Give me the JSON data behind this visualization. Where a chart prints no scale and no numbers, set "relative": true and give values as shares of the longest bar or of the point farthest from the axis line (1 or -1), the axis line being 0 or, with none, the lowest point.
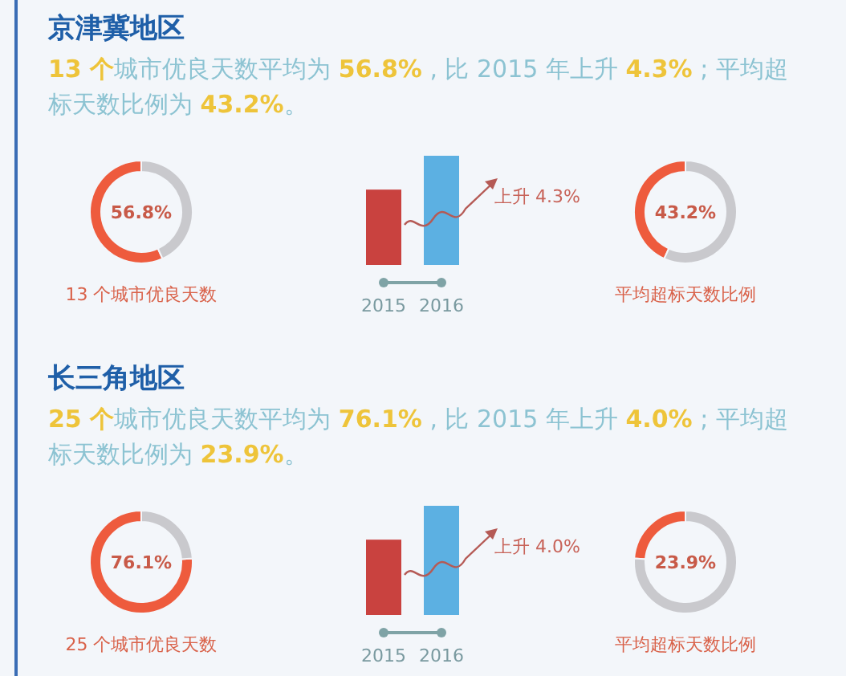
{
  "chart_data": [
    {
      "type": "other",
      "title": "京津冀地区",
      "subtitle": "**13 个**城市优良天数平均为 **56.8%** , 比 2015 年上升 **4.3%** ; 平均超标天数比例为 **43.2%**。"
    },
    {
      "type": "donut",
      "title": "13 个城市优良天数",
      "categories": [
        null,
        null
      ],
      "values": [
        56.8,
        43.2
      ],
      "colors": [
        "#ee5b3d",
        "#c9c9cd"
      ],
      "annotations": [
        "56.8%"
      ]
    },
    {
      "type": "bar",
      "relative": true,
      "categories": [
        "2015",
        "2016"
      ],
      "values": [
        0.69,
        1
      ],
      "colors": [
        "#c9423f",
        "#5cb0e2"
      ],
      "annotations": [
        "上升 4.3%"
      ]
    },
    {
      "type": "donut",
      "title": "平均超标天数比例",
      "categories": [
        null,
        null
      ],
      "values": [
        43.2,
        56.8
      ],
      "colors": [
        "#ee5b3d",
        "#c9c9cd"
      ],
      "annotations": [
        "43.2%"
      ]
    },
    {
      "type": "other",
      "title": "长三角地区",
      "subtitle": "**25 个**城市优良天数平均为 **76.1%** , 比 2015 年上升 **4.0%** ; 平均超标天数比例为 **23.9%**。"
    },
    {
      "type": "donut",
      "title": "25 个城市优良天数",
      "categories": [
        null,
        null
      ],
      "values": [
        76.1,
        23.9
      ],
      "colors": [
        "#ee5b3d",
        "#c9c9cd"
      ],
      "annotations": [
        "76.1%"
      ]
    },
    {
      "type": "bar",
      "relative": true,
      "categories": [
        "2015",
        "2016"
      ],
      "values": [
        0.69,
        1
      ],
      "colors": [
        "#c9423f",
        "#5cb0e2"
      ],
      "annotations": [
        "上升 4.0%"
      ]
    },
    {
      "type": "donut",
      "title": "平均超标天数比例",
      "categories": [
        null,
        null
      ],
      "values": [
        23.9,
        76.1
      ],
      "colors": [
        "#ee5b3d",
        "#c9c9cd"
      ],
      "annotations": [
        "23.9%"
      ]
    }
  ]
}
